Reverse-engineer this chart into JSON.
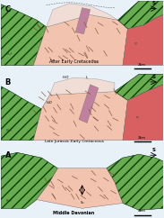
{
  "colors": {
    "green": "#6aaa50",
    "pink_light": "#f2c4b0",
    "pink_upper": "#f0ddd5",
    "red_pink": "#d96060",
    "purple_dyke": "#c080a0",
    "bg": "#c8ddf0",
    "white_panel": "#e8f0f8"
  },
  "panels": [
    {
      "label": "C",
      "title": "After Early Cretaceous"
    },
    {
      "label": "B",
      "title": "Late Jurassic-Early Cretaceous"
    },
    {
      "label": "A",
      "title": "Middle Devonian"
    }
  ]
}
